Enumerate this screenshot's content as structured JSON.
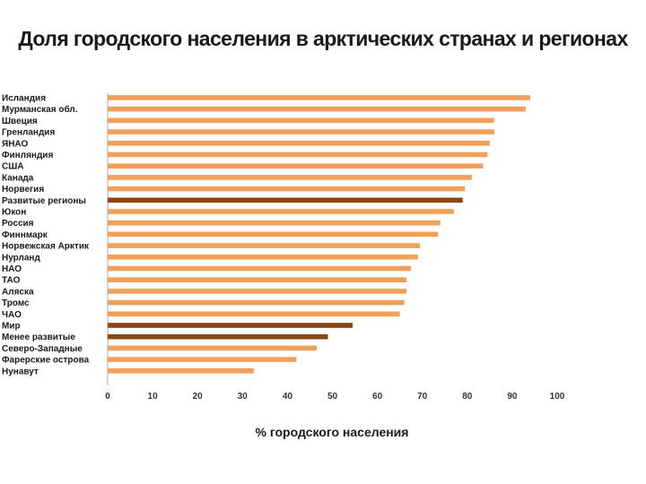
{
  "chart_data": {
    "type": "bar",
    "orientation": "horizontal",
    "title": "Доля городского населения в арктических странах и регионах",
    "xlabel": "% городского населения",
    "ylabel": "",
    "xlim": [
      0,
      100
    ],
    "xticks": [
      "0",
      "10",
      "20",
      "30",
      "40",
      "50",
      "60",
      "70",
      "80",
      "90",
      "100"
    ],
    "grid": false,
    "legend": "none",
    "colors": {
      "default": "#f0a05a",
      "highlight": "#8b4513",
      "axis": "#aaaaaa"
    },
    "categories": [
      "Исландия",
      "Мурманская обл.",
      "Швеция",
      "Гренландия",
      "ЯНАО",
      "Финляндия",
      "США",
      "Канада",
      "Норвегия",
      "Развитые регионы",
      "Юкон",
      "Россия",
      "Финнмарк",
      "Норвежская Арктик",
      "Нурланд",
      "НАО",
      "ТАО",
      "Аляска",
      "Тромс",
      "ЧАО",
      "Мир",
      "Менее развитые",
      "Северо-Западные",
      "Фарерские острова",
      "Нунавут"
    ],
    "values": [
      94,
      93,
      86,
      86,
      85,
      84.5,
      83.5,
      81,
      79.5,
      79,
      77,
      74,
      73.5,
      69.5,
      69,
      67.5,
      66.5,
      66.5,
      66,
      65,
      54.5,
      49,
      46.5,
      42,
      32.5
    ],
    "highlighted": [
      "Развитые регионы",
      "Мир",
      "Менее развитые"
    ]
  }
}
